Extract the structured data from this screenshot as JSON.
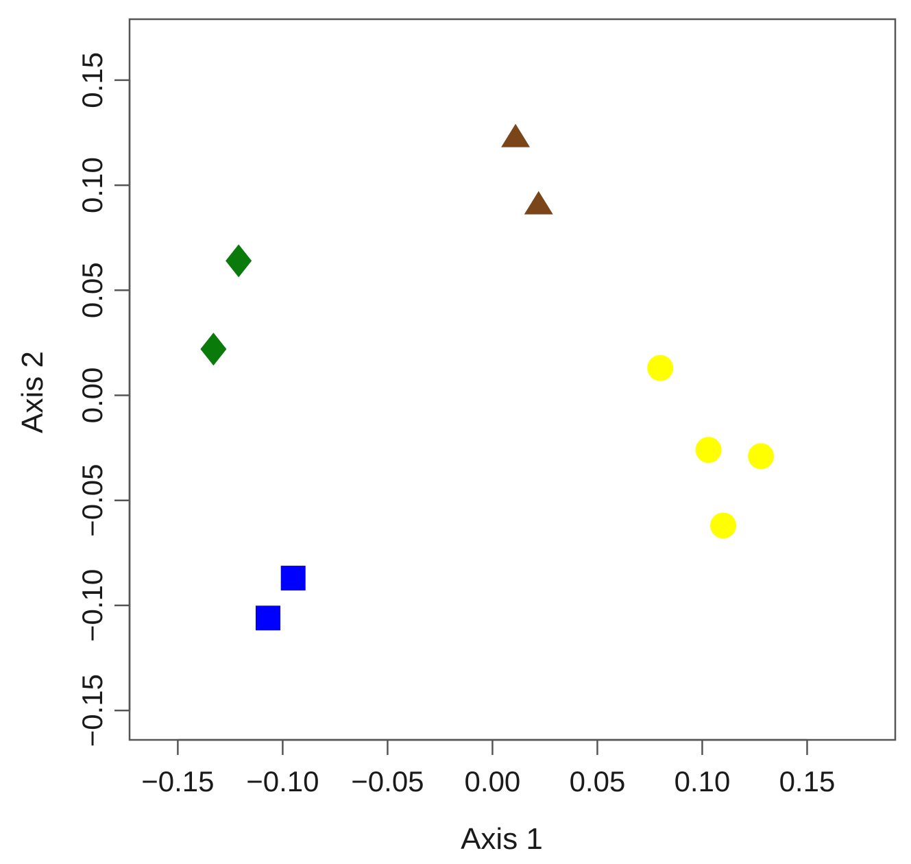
{
  "chart_data": {
    "type": "scatter",
    "title": "",
    "xlabel": "Axis 1",
    "ylabel": "Axis 2",
    "xlim": [
      -0.173,
      0.192
    ],
    "ylim": [
      -0.164,
      0.179
    ],
    "xticks": [
      -0.15,
      -0.1,
      -0.05,
      0.0,
      0.05,
      0.1,
      0.15
    ],
    "yticks": [
      -0.15,
      -0.1,
      -0.05,
      0.0,
      0.05,
      0.1,
      0.15
    ],
    "xtick_labels": [
      "−0.15",
      "−0.10",
      "−0.05",
      "0.00",
      "0.05",
      "0.10",
      "0.15"
    ],
    "ytick_labels": [
      "−0.15",
      "−0.10",
      "−0.05",
      "0.00",
      "0.05",
      "0.10",
      "0.15"
    ],
    "grid": false,
    "legend": "none",
    "series": [
      {
        "marker": "triangle",
        "color": "#7a4519",
        "points": [
          {
            "x": 0.011,
            "y": 0.123
          },
          {
            "x": 0.022,
            "y": 0.091
          }
        ]
      },
      {
        "marker": "diamond",
        "color": "#0a7a0a",
        "points": [
          {
            "x": -0.121,
            "y": 0.064
          },
          {
            "x": -0.133,
            "y": 0.022
          }
        ]
      },
      {
        "marker": "circle",
        "color": "#ffff00",
        "points": [
          {
            "x": 0.08,
            "y": 0.013
          },
          {
            "x": 0.103,
            "y": -0.026
          },
          {
            "x": 0.128,
            "y": -0.029
          },
          {
            "x": 0.11,
            "y": -0.062
          }
        ]
      },
      {
        "marker": "square",
        "color": "#0000ff",
        "points": [
          {
            "x": -0.095,
            "y": -0.087
          },
          {
            "x": -0.107,
            "y": -0.106
          }
        ]
      }
    ]
  }
}
